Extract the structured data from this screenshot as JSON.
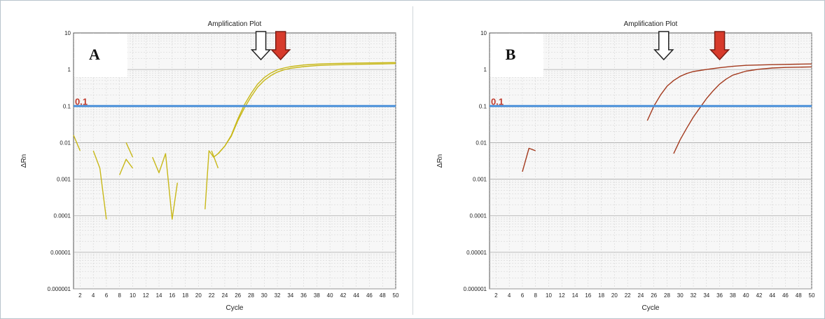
{
  "colors": {
    "threshold": "#4a90d9",
    "sample_a": "#c8b818",
    "sample_b": "#a33a1e",
    "arrow_red": "#d73a2b",
    "arrow_white": "#ffffff",
    "grid": "#cfcfcf",
    "plot_background": "#f7f7f7"
  },
  "chart_data": [
    {
      "type": "line",
      "panel_label": "A",
      "title": "Amplification Plot",
      "xlabel": "Cycle",
      "ylabel": "ΔRn",
      "x_ticks": [
        2,
        4,
        6,
        8,
        10,
        12,
        14,
        16,
        18,
        20,
        22,
        24,
        26,
        28,
        30,
        32,
        34,
        36,
        38,
        40,
        42,
        44,
        46,
        48,
        50
      ],
      "y_ticks": [
        1e-06,
        1e-05,
        0.0001,
        0.001,
        0.01,
        0.1,
        1,
        10
      ],
      "y_tick_labels": [
        "0.000001",
        "0.00001",
        "0.0001",
        "0.001",
        "0.01",
        "0.1",
        "1",
        "10"
      ],
      "xlim": [
        1,
        50
      ],
      "ylim": [
        1e-06,
        10
      ],
      "y_scale": "log",
      "grid": true,
      "threshold": {
        "value": 0.1,
        "label": "0.1"
      },
      "arrows": [
        {
          "style": "open",
          "cycle": 29.5
        },
        {
          "style": "filled-red",
          "cycle": 32.5
        }
      ],
      "series": [
        {
          "segments": [
            [
              [
                1,
                0.016
              ],
              [
                2,
                0.006
              ]
            ],
            [
              [
                4,
                0.006
              ],
              [
                5,
                0.002
              ],
              [
                6,
                8e-05
              ]
            ],
            [
              [
                8,
                0.0013
              ],
              [
                9,
                0.0035
              ],
              [
                10,
                0.002
              ]
            ],
            [
              [
                9,
                0.01
              ],
              [
                10,
                0.004
              ]
            ],
            [
              [
                13,
                0.004
              ],
              [
                14,
                0.0015
              ],
              [
                15,
                0.005
              ],
              [
                16,
                8e-05
              ],
              [
                16.8,
                0.0008
              ]
            ],
            [
              [
                21,
                0.00015
              ],
              [
                21.6,
                0.006
              ],
              [
                22.3,
                0.004
              ],
              [
                23,
                0.005
              ]
            ],
            [
              [
                22,
                0.006
              ],
              [
                23,
                0.002
              ]
            ],
            [
              [
                23,
                0.005
              ],
              [
                24,
                0.008
              ],
              [
                25,
                0.015
              ],
              [
                26,
                0.04
              ],
              [
                27,
                0.09
              ],
              [
                28,
                0.18
              ],
              [
                29,
                0.33
              ],
              [
                30,
                0.5
              ],
              [
                31,
                0.68
              ],
              [
                32,
                0.85
              ],
              [
                33,
                0.98
              ],
              [
                34,
                1.08
              ],
              [
                36,
                1.2
              ],
              [
                38,
                1.28
              ],
              [
                40,
                1.33
              ],
              [
                44,
                1.38
              ],
              [
                48,
                1.42
              ],
              [
                50,
                1.45
              ]
            ]
          ]
        },
        {
          "segments": [
            [
              [
                23,
                0.005
              ],
              [
                24,
                0.008
              ],
              [
                25,
                0.016
              ],
              [
                26,
                0.045
              ],
              [
                27,
                0.11
              ],
              [
                28,
                0.22
              ],
              [
                29,
                0.4
              ],
              [
                30,
                0.6
              ],
              [
                31,
                0.8
              ],
              [
                32,
                0.98
              ],
              [
                33,
                1.1
              ],
              [
                34,
                1.2
              ],
              [
                36,
                1.33
              ],
              [
                38,
                1.4
              ],
              [
                40,
                1.45
              ],
              [
                44,
                1.5
              ],
              [
                48,
                1.53
              ],
              [
                50,
                1.55
              ]
            ]
          ]
        }
      ]
    },
    {
      "type": "line",
      "panel_label": "B",
      "title": "Amplification Plot",
      "xlabel": "Cycle",
      "ylabel": "ΔRn",
      "x_ticks": [
        2,
        4,
        6,
        8,
        10,
        12,
        14,
        16,
        18,
        20,
        22,
        24,
        26,
        28,
        30,
        32,
        34,
        36,
        38,
        40,
        42,
        44,
        46,
        48,
        50
      ],
      "y_ticks": [
        1e-06,
        1e-05,
        0.0001,
        0.001,
        0.01,
        0.1,
        1,
        10
      ],
      "y_tick_labels": [
        "0.000001",
        "0.00001",
        "0.0001",
        "0.001",
        "0.01",
        "0.1",
        "1",
        "10"
      ],
      "xlim": [
        1,
        50
      ],
      "ylim": [
        1e-06,
        10
      ],
      "y_scale": "log",
      "grid": true,
      "threshold": {
        "value": 0.1,
        "label": "0.1"
      },
      "arrows": [
        {
          "style": "open",
          "cycle": 27.5
        },
        {
          "style": "filled-red",
          "cycle": 36
        }
      ],
      "series": [
        {
          "segments": [
            [
              [
                6,
                0.0016
              ],
              [
                7,
                0.007
              ],
              [
                8,
                0.006
              ]
            ],
            [
              [
                25,
                0.04
              ],
              [
                26,
                0.1
              ],
              [
                27,
                0.2
              ],
              [
                28,
                0.35
              ],
              [
                29,
                0.5
              ],
              [
                30,
                0.65
              ],
              [
                31,
                0.78
              ],
              [
                32,
                0.88
              ],
              [
                34,
                1.0
              ],
              [
                36,
                1.12
              ],
              [
                38,
                1.22
              ],
              [
                40,
                1.3
              ],
              [
                44,
                1.36
              ],
              [
                48,
                1.4
              ],
              [
                50,
                1.42
              ]
            ]
          ]
        },
        {
          "segments": [
            [
              [
                29,
                0.005
              ],
              [
                30,
                0.012
              ],
              [
                31,
                0.025
              ],
              [
                32,
                0.05
              ],
              [
                33,
                0.09
              ],
              [
                34,
                0.16
              ],
              [
                35,
                0.26
              ],
              [
                36,
                0.4
              ],
              [
                37,
                0.55
              ],
              [
                38,
                0.7
              ],
              [
                40,
                0.9
              ],
              [
                42,
                1.02
              ],
              [
                44,
                1.1
              ],
              [
                46,
                1.14
              ],
              [
                48,
                1.16
              ],
              [
                50,
                1.18
              ]
            ]
          ]
        }
      ]
    }
  ]
}
